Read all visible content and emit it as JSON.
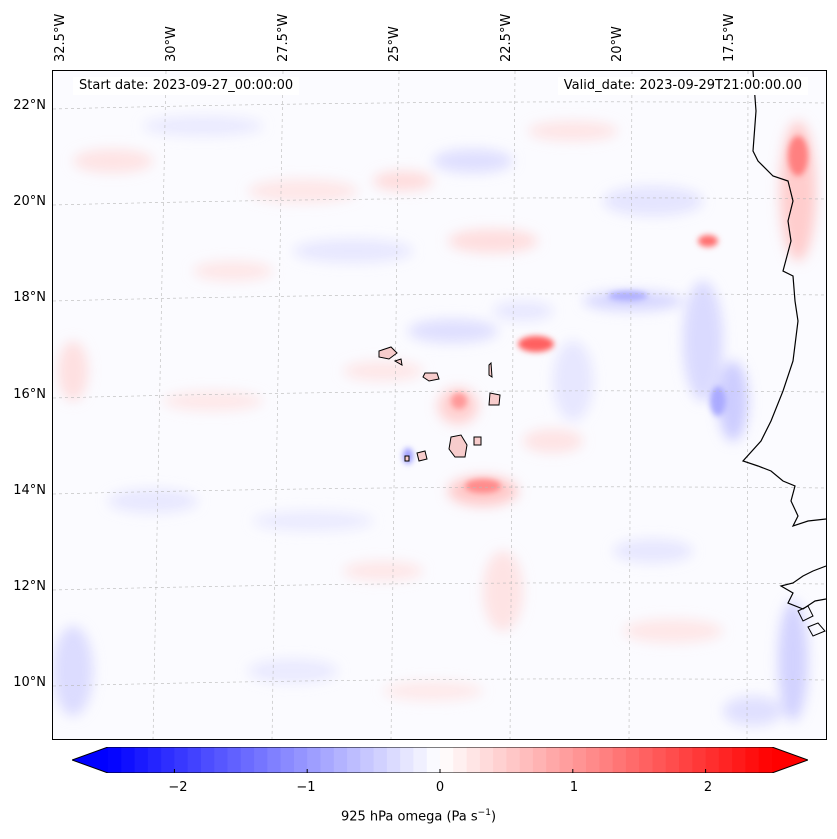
{
  "header": {
    "start_date": "Start date: 2023-09-27_00:00:00",
    "valid_date": "Valid_date: 2023-09-29T21:00:00.00"
  },
  "axes": {
    "lon_labels": [
      "32.5°W",
      "30°W",
      "27.5°W",
      "25°W",
      "22.5°W",
      "20°W",
      "17.5°W"
    ],
    "lat_labels": [
      "22°N",
      "20°N",
      "18°N",
      "16°N",
      "14°N",
      "12°N",
      "10°N"
    ]
  },
  "colorbar": {
    "ticks": [
      "−2",
      "−1",
      "0",
      "1",
      "2"
    ],
    "label_prefix": "925 hPa omega (Pa s",
    "label_exp": "−1",
    "label_suffix": ")",
    "min_color": "#0000ff",
    "mid_color": "#ffffff",
    "max_color": "#ff0000",
    "range": [
      -2.5,
      2.5
    ]
  }
}
